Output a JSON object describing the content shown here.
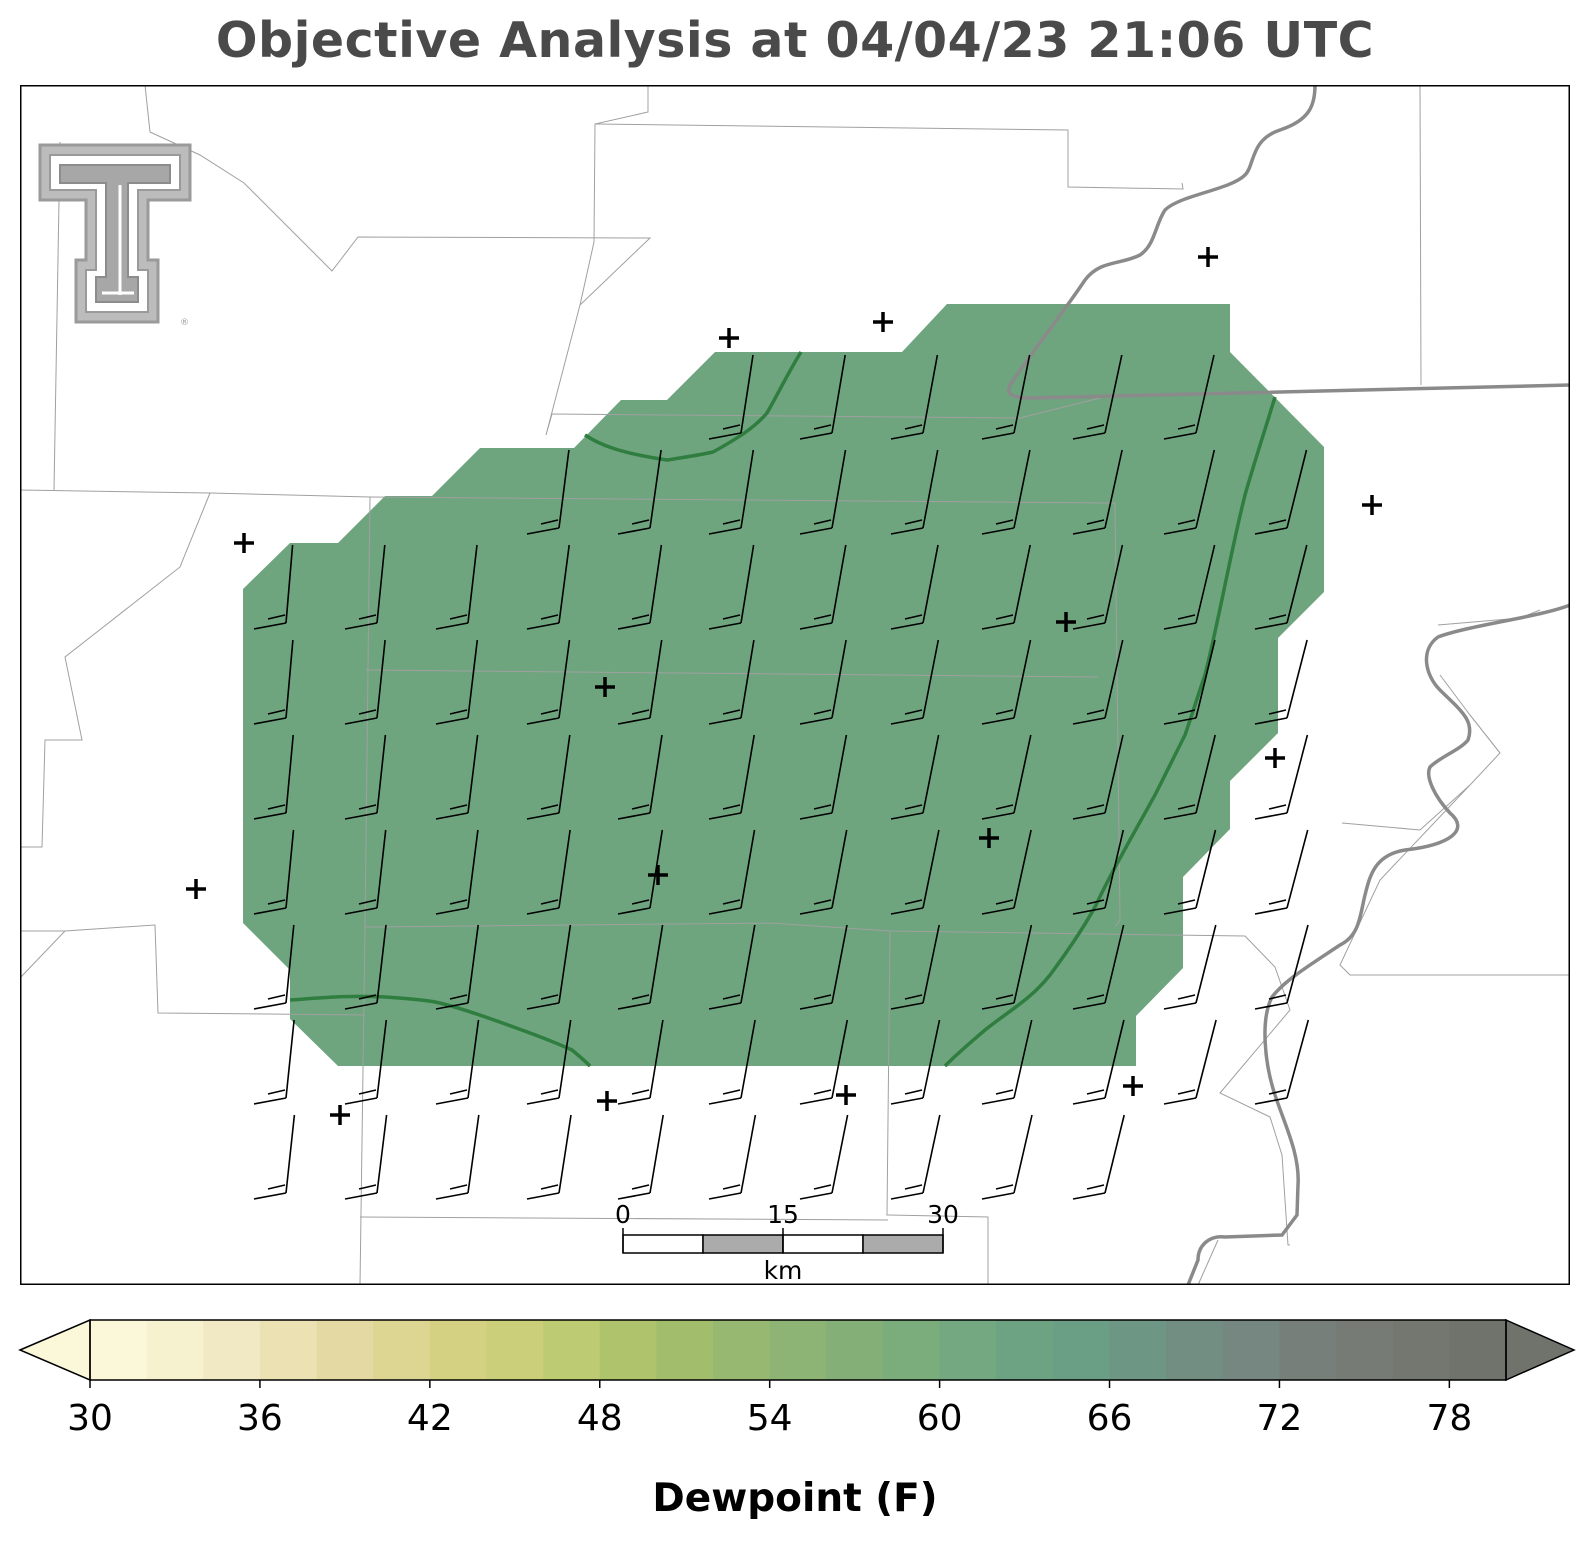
{
  "title": "Objective Analysis at 04/04/23 21:06 UTC",
  "logo": {
    "name": "Texas Tech Double T",
    "text": "TT"
  },
  "map": {
    "field": "Dewpoint (F)",
    "fill_color": "#6ea57f",
    "contour_color": "#2f7d3f",
    "boundary_color": "#9a9a9a",
    "river_color": "#8a8a8a",
    "station_marker": "plus",
    "barb_color": "#000000"
  },
  "scalebar": {
    "labels": [
      "0",
      "15",
      "30"
    ],
    "unit": "km"
  },
  "colorbar": {
    "label": "Dewpoint (F)",
    "ticks": [
      "30",
      "36",
      "42",
      "48",
      "54",
      "60",
      "66",
      "72",
      "78"
    ],
    "min": 30,
    "max": 80,
    "step": 2,
    "extend": "both",
    "colors": [
      "#fbf8d9",
      "#f6f1cf",
      "#f0e9c3",
      "#ebe1b3",
      "#e4d9a2",
      "#ddd592",
      "#d4d183",
      "#cbcf7a",
      "#bdcb72",
      "#aec36b",
      "#a2bd6b",
      "#97b870",
      "#8db474",
      "#84b078",
      "#7bac7c",
      "#73a880",
      "#6da383",
      "#6a9e85",
      "#6d9684",
      "#728d82",
      "#768680",
      "#777f7a",
      "#767b75",
      "#737770",
      "#70736c"
    ]
  },
  "colorbar_label": "Dewpoint (F)"
}
